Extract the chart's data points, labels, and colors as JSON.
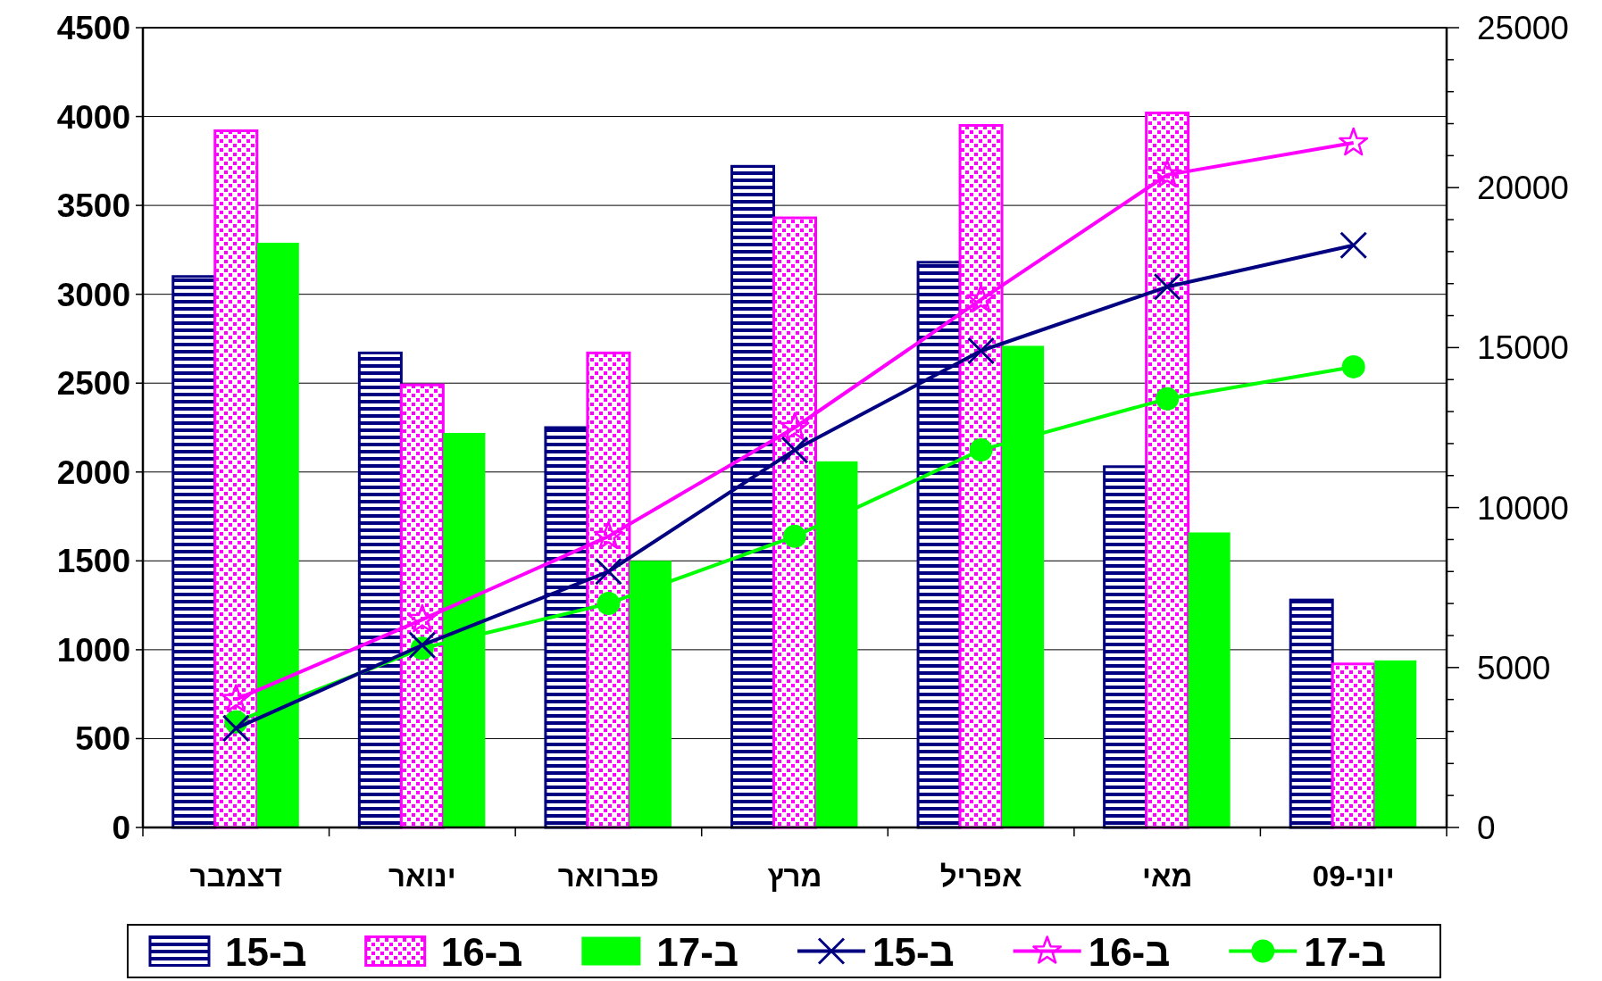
{
  "chart_data": {
    "type": "bar",
    "categories": [
      "דצמבר",
      "ינואר",
      "פברואר",
      "מרץ",
      "אפריל",
      "מאי",
      "יוני-09"
    ],
    "series": [
      {
        "name": "ב-15",
        "color": "#000080",
        "values": [
          3100,
          2670,
          2250,
          3720,
          3180,
          2030,
          1280
        ]
      },
      {
        "name": "ב-16",
        "color": "#ff00ff",
        "values": [
          3920,
          2490,
          2670,
          3430,
          3950,
          4020,
          920
        ]
      },
      {
        "name": "ב-17",
        "color": "#00ff00",
        "values": [
          3290,
          2220,
          1500,
          2060,
          2710,
          1660,
          940
        ]
      },
      {
        "name": "ב-15",
        "type": "line",
        "axis": "y2",
        "color": "#000080",
        "marker": "cross",
        "values": [
          3100,
          5700,
          8000,
          11800,
          14900,
          16900,
          18200
        ]
      },
      {
        "name": "ב-16",
        "type": "line",
        "axis": "y2",
        "color": "#ff00ff",
        "marker": "star",
        "values": [
          4000,
          6500,
          9100,
          12500,
          16500,
          20400,
          21400
        ]
      },
      {
        "name": "ב-17",
        "type": "line",
        "axis": "y2",
        "color": "#00ff00",
        "marker": "circle",
        "values": [
          3300,
          5600,
          7000,
          9100,
          11800,
          13400,
          14400
        ]
      }
    ],
    "ylim": [
      0,
      4500
    ],
    "yticks": [
      0,
      500,
      1000,
      1500,
      2000,
      2500,
      3000,
      3500,
      4000,
      4500
    ],
    "y2lim": [
      0,
      25000
    ],
    "y2ticks": [
      0,
      {
        "value": 1000,
        "label": null
      },
      {
        "value": 2000,
        "label": null
      },
      {
        "value": 3000,
        "label": null
      },
      {
        "value": 4000,
        "label": null
      },
      5000,
      {
        "value": 6000,
        "label": null
      },
      {
        "value": 7000,
        "label": null
      },
      {
        "value": 8000,
        "label": null
      },
      {
        "value": 9000,
        "label": null
      },
      10000,
      {
        "value": 11000,
        "label": null
      },
      {
        "value": 12000,
        "label": null
      },
      {
        "value": 13000,
        "label": null
      },
      {
        "value": 14000,
        "label": null
      },
      15000,
      {
        "value": 16000,
        "label": null
      },
      {
        "value": 17000,
        "label": null
      },
      {
        "value": 18000,
        "label": null
      },
      {
        "value": 19000,
        "label": null
      },
      20000,
      {
        "value": 21000,
        "label": null
      },
      {
        "value": 22000,
        "label": null
      },
      {
        "value": 23000,
        "label": null
      },
      {
        "value": 24000,
        "label": null
      },
      25000
    ],
    "grid": "y",
    "legend": "bottom"
  }
}
